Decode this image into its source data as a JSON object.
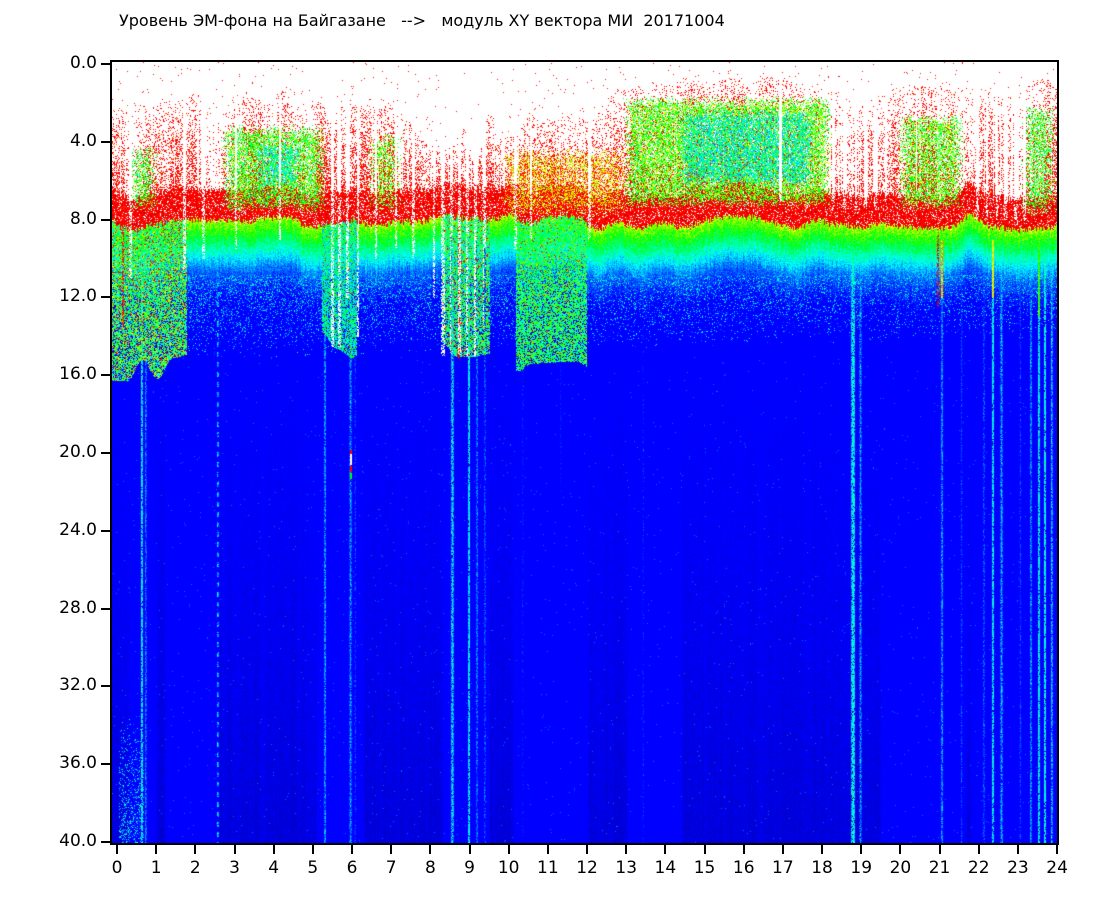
{
  "chart_data": {
    "type": "heatmap",
    "subtype": "spectrogram",
    "title": "Уровень ЭМ-фона на Байгазане   -->   модуль XY вектора МИ  20171004",
    "x_axis": {
      "min": 0,
      "max": 24,
      "ticks": [
        "0",
        "1",
        "2",
        "3",
        "4",
        "5",
        "6",
        "7",
        "8",
        "9",
        "10",
        "11",
        "12",
        "13",
        "14",
        "15",
        "16",
        "17",
        "18",
        "19",
        "20",
        "21",
        "22",
        "23",
        "24"
      ]
    },
    "y_axis": {
      "min": 0,
      "max": 40,
      "inverted": true,
      "ticks": [
        "0.0",
        "4.0",
        "8.0",
        "12.0",
        "16.0",
        "20.0",
        "24.0",
        "28.0",
        "32.0",
        "36.0",
        "40.0"
      ]
    },
    "colormap": "jet",
    "background": "#ffffff",
    "frame_color": "#000000",
    "seed": 7,
    "model": {
      "surface": {
        "level": 8.15,
        "roughness": 0.4
      },
      "red_band": {
        "thickness": 1.6,
        "density": 0.86,
        "t0": 0.72,
        "t1": 0.92
      },
      "depth_profile": [
        [
          0,
          0.58
        ],
        [
          1.2,
          0.44
        ],
        [
          2.6,
          0.3
        ],
        [
          6.5,
          0.135
        ],
        [
          40,
          0.1
        ]
      ],
      "profile_noise": [
        0.12,
        0.1,
        0.06,
        0.025,
        0.025
      ],
      "speckle_band": {
        "v_start": 10.8,
        "limit_at_0": 15.3,
        "limit_slope": 0.05,
        "density": 0.34,
        "t0": 0.26,
        "t1": 0.42
      },
      "red_top": {
        "p0": 0.1,
        "p1": 0.55,
        "t0": 0.7,
        "t1": 0.88,
        "envelope": [
          [
            0,
            2.6
          ],
          [
            0.5,
            2.2
          ],
          [
            1,
            2.1
          ],
          [
            1.5,
            2.4
          ],
          [
            2,
            1.9
          ],
          [
            2.5,
            3.0
          ],
          [
            3,
            1.8
          ],
          [
            3.5,
            1.6
          ],
          [
            4,
            1.6
          ],
          [
            4.5,
            1.8
          ],
          [
            5,
            1.8
          ],
          [
            5.5,
            2.8
          ],
          [
            6,
            2.0
          ],
          [
            6.5,
            1.7
          ],
          [
            7,
            2.0
          ],
          [
            7.5,
            2.5
          ],
          [
            8,
            3.6
          ],
          [
            8.5,
            4.4
          ],
          [
            9,
            4.3
          ],
          [
            9.5,
            3.5
          ],
          [
            10,
            3.0
          ],
          [
            10.5,
            2.7
          ],
          [
            11,
            2.7
          ],
          [
            11.5,
            2.5
          ],
          [
            12,
            2.3
          ],
          [
            12.5,
            2.0
          ],
          [
            13,
            1.6
          ],
          [
            13.5,
            1.1
          ],
          [
            14,
            0.9
          ],
          [
            14.5,
            0.8
          ],
          [
            15,
            0.8
          ],
          [
            16,
            0.8
          ],
          [
            17,
            0.8
          ],
          [
            17.5,
            0.9
          ],
          [
            18,
            1.1
          ],
          [
            18.5,
            1.5
          ],
          [
            19,
            1.9
          ],
          [
            19.5,
            1.6
          ],
          [
            20,
            1.2
          ],
          [
            20.5,
            1.0
          ],
          [
            21,
            1.2
          ],
          [
            21.5,
            1.0
          ],
          [
            22,
            1.5
          ],
          [
            22.5,
            1.8
          ],
          [
            23,
            1.2
          ],
          [
            23.5,
            0.8
          ],
          [
            24,
            1.0
          ]
        ]
      },
      "green_blobs": [
        [
          0.25,
          1.05,
          4.2,
          7.5,
          0.5,
          0.42,
          0.6
        ],
        [
          2.65,
          5.35,
          3.1,
          7.6,
          0.62,
          0.42,
          0.62
        ],
        [
          3.5,
          4.7,
          3.9,
          6.4,
          0.5,
          0.33,
          0.45
        ],
        [
          6.35,
          7.3,
          3.5,
          7.6,
          0.42,
          0.45,
          0.62
        ],
        [
          9.8,
          13.0,
          4.3,
          7.8,
          0.5,
          0.55,
          0.75
        ],
        [
          12.9,
          18.25,
          1.6,
          7.4,
          0.62,
          0.44,
          0.62
        ],
        [
          14.3,
          17.8,
          2.3,
          6.3,
          0.55,
          0.32,
          0.46
        ],
        [
          19.9,
          21.65,
          2.5,
          7.5,
          0.55,
          0.44,
          0.62
        ],
        [
          23.05,
          23.97,
          2.1,
          7.8,
          0.5,
          0.42,
          0.6
        ]
      ],
      "deep_columns": [
        [
          0.0,
          1.78,
          15.5,
          0.34,
          0.62,
          0.1
        ],
        [
          5.22,
          6.12,
          14.6,
          0.32,
          0.52,
          0.03
        ],
        [
          8.28,
          9.5,
          15.0,
          0.34,
          0.58,
          0.08
        ],
        [
          10.18,
          11.98,
          15.0,
          0.36,
          0.58,
          0.03
        ]
      ],
      "white_gaps": [
        [
          0.33,
          2,
          11
        ],
        [
          1.72,
          2,
          10.5
        ],
        [
          2.2,
          2,
          10
        ],
        [
          3.02,
          1,
          9.5
        ],
        [
          4.15,
          1,
          9
        ],
        [
          5.48,
          2,
          14.5
        ],
        [
          5.66,
          2,
          14.5
        ],
        [
          5.88,
          2,
          12
        ],
        [
          6.14,
          2,
          14
        ],
        [
          6.6,
          2,
          10
        ],
        [
          7.12,
          1,
          9.5
        ],
        [
          7.56,
          2,
          10
        ],
        [
          8.08,
          2,
          12
        ],
        [
          8.3,
          3,
          15
        ],
        [
          8.52,
          2,
          15
        ],
        [
          8.73,
          2,
          15
        ],
        [
          8.93,
          2,
          15
        ],
        [
          9.14,
          3,
          15
        ],
        [
          9.36,
          2,
          13.5
        ],
        [
          10.16,
          2,
          9.5
        ],
        [
          10.55,
          1,
          9
        ],
        [
          12.06,
          2,
          9
        ],
        [
          16.92,
          2,
          7
        ],
        [
          18.28,
          2,
          7.5
        ],
        [
          18.56,
          2,
          7.5
        ],
        [
          18.85,
          1,
          7.5
        ],
        [
          19.1,
          2,
          7.5
        ],
        [
          19.36,
          2,
          7.5
        ],
        [
          19.62,
          2,
          7
        ],
        [
          20.4,
          1,
          6.5
        ],
        [
          21.95,
          2,
          8
        ],
        [
          22.2,
          2,
          8
        ],
        [
          22.45,
          1,
          8
        ],
        [
          22.68,
          2,
          8
        ],
        [
          22.92,
          2,
          8
        ],
        [
          23.16,
          2,
          8
        ]
      ],
      "cyan_streaks": [
        [
          0.62,
          8.5,
          40,
          0.4,
          1,
          0,
          0,
          0
        ],
        [
          0.72,
          9,
          40,
          0.32,
          1,
          0,
          0,
          0
        ],
        [
          2.56,
          9,
          40,
          0.36,
          1,
          1,
          0,
          0
        ],
        [
          5.3,
          9,
          40,
          0.34,
          1,
          0,
          0,
          0
        ],
        [
          5.95,
          9,
          40,
          0.33,
          1,
          0,
          0,
          0
        ],
        [
          6.07,
          10,
          40,
          0.28,
          1,
          0,
          0,
          0
        ],
        [
          8.55,
          8.8,
          40,
          0.38,
          1,
          0,
          0,
          0
        ],
        [
          8.98,
          8.8,
          40,
          0.4,
          1,
          0,
          0,
          0
        ],
        [
          9.18,
          9,
          40,
          0.32,
          1,
          0,
          0,
          0
        ],
        [
          9.38,
          9.5,
          40,
          0.3,
          1,
          0,
          0,
          0
        ],
        [
          10.35,
          12,
          40,
          0.26,
          1,
          0,
          0,
          0
        ],
        [
          11.32,
          11,
          22,
          0.26,
          1,
          0,
          0,
          0
        ],
        [
          13.42,
          11,
          40,
          0.26,
          1,
          0,
          0,
          0
        ],
        [
          18.78,
          8.5,
          40,
          0.42,
          2,
          0,
          0,
          0
        ],
        [
          18.97,
          9,
          40,
          0.33,
          1,
          0,
          0,
          0
        ],
        [
          21.05,
          9,
          40,
          0.34,
          1,
          0,
          12,
          0.66
        ],
        [
          21.55,
          11,
          40,
          0.28,
          1,
          0,
          0,
          0
        ],
        [
          22.12,
          9,
          40,
          0.3,
          1,
          0,
          0,
          0
        ],
        [
          22.35,
          9,
          40,
          0.4,
          1,
          0,
          12,
          0.62
        ],
        [
          22.57,
          9,
          40,
          0.34,
          1,
          0,
          0,
          0
        ],
        [
          23.05,
          10,
          40,
          0.28,
          1,
          0,
          0,
          0
        ],
        [
          23.32,
          9,
          40,
          0.34,
          1,
          0,
          0,
          0
        ],
        [
          23.52,
          9,
          40,
          0.4,
          1,
          0,
          13,
          0.52
        ],
        [
          23.68,
          9,
          40,
          0.42,
          1,
          0,
          0,
          0
        ],
        [
          23.85,
          9,
          40,
          0.36,
          1,
          0,
          0,
          0
        ]
      ],
      "red_deep_streaks": [
        [
          0.13,
          13.5
        ],
        [
          8.72,
          15.2
        ],
        [
          20.95,
          12.5
        ]
      ],
      "faint_columns": [
        [
          0.4,
          0.9
        ],
        [
          1.3,
          2.5
        ],
        [
          5.2,
          6.2
        ],
        [
          8.4,
          9.4
        ],
        [
          10.2,
          11.9
        ],
        [
          13.1,
          14.3
        ],
        [
          19.6,
          21.6
        ],
        [
          21.9,
          23.9
        ]
      ],
      "anomaly": {
        "hour": 5.95,
        "width": 2,
        "segments": [
          [
            19.8,
            20.05,
            0.78
          ],
          [
            20.05,
            20.6,
            -1
          ],
          [
            20.65,
            20.95,
            0.78
          ],
          [
            21.0,
            21.3,
            0.5
          ]
        ]
      },
      "corner_speckle": {
        "h0": 0.05,
        "h1": 0.68,
        "v0": 33.5,
        "v1": 40,
        "density": 0.32,
        "t0": 0.28,
        "t1": 0.42
      }
    }
  }
}
